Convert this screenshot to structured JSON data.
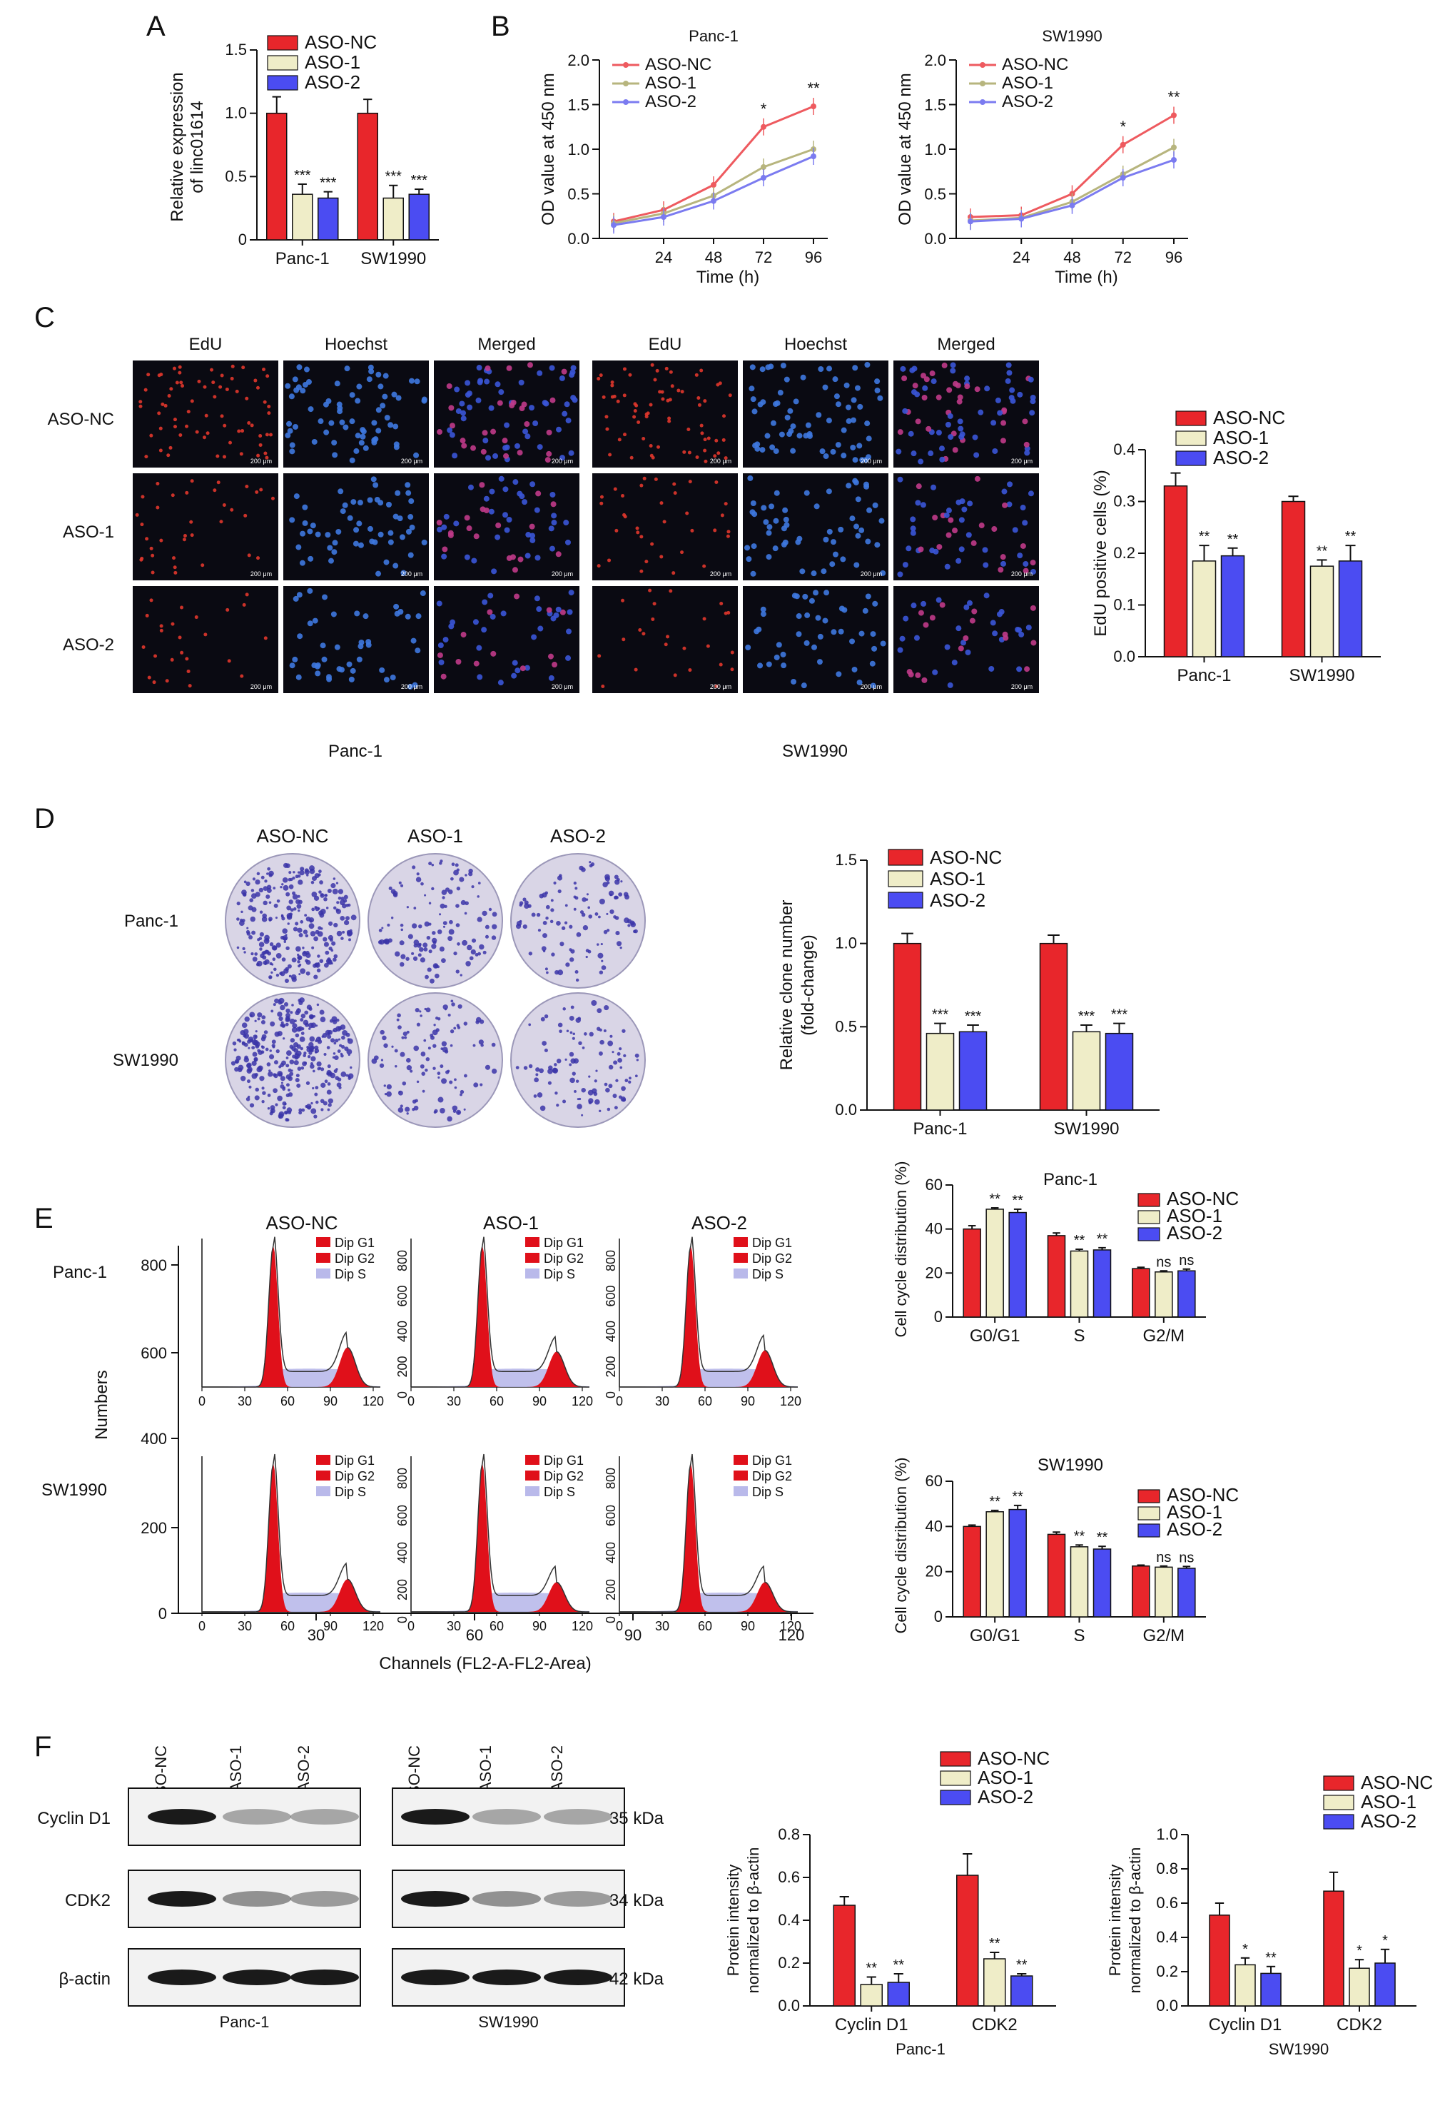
{
  "colors": {
    "nc": "#e8262b",
    "aso1": "#efedc8",
    "aso2": "#4b4cf2",
    "line_nc": "#ee5a5f",
    "line_aso1": "#b7b57e",
    "line_aso2": "#7b7bf0",
    "micro_bg": "#0a0a12"
  },
  "panels": {
    "A": {
      "letter": "A",
      "ylabel1": "Relative expression",
      "ylabel2": "of linc01614",
      "ticks": [
        "1.5",
        "1.0",
        "0.5",
        "0"
      ]
    },
    "B": {
      "letter": "B",
      "ylabel": "OD value at 450 nm",
      "xlabel": "Time (h)",
      "ticks_y": [
        "2.0",
        "1.5",
        "1.0",
        "0.5",
        "0.0"
      ],
      "ticks_x": [
        "24",
        "48",
        "72",
        "96"
      ]
    },
    "C": {
      "letter": "C",
      "col_headers": [
        "EdU",
        "Hoechst",
        "Merged",
        "EdU",
        "Hoechst",
        "Merged"
      ],
      "row_labels": [
        "ASO-NC",
        "ASO-1",
        "ASO-2"
      ],
      "scale_label": "200 μm",
      "group_labels": [
        "Panc-1",
        "SW1990"
      ],
      "ylabel": "EdU positive cells (%)",
      "ticks": [
        "0.4",
        "0.3",
        "0.2",
        "0.1",
        "0.0"
      ]
    },
    "D": {
      "letter": "D",
      "col_headers": [
        "ASO-NC",
        "ASO-1",
        "ASO-2"
      ],
      "row_labels": [
        "Panc-1",
        "SW1990"
      ],
      "ylabel1": "Relative clone number",
      "ylabel2": "(fold-change)",
      "ticks": [
        "1.5",
        "1.0",
        "0.5",
        "0.0"
      ]
    },
    "E": {
      "letter": "E",
      "col_headers": [
        "ASO-NC",
        "ASO-1",
        "ASO-2"
      ],
      "row_labels": [
        "Panc-1",
        "SW1990"
      ],
      "ylabel": "Numbers",
      "xlabel": "Channels (FL2-A-FL2-Area)",
      "legend": [
        "Dip G1",
        "Dip G2",
        "Dip S"
      ],
      "outer_yticks_top": [
        "800",
        "600"
      ],
      "outer_yticks_bot": [
        "400",
        "200",
        "0"
      ],
      "outer_xticks": [
        "30",
        "60",
        "90",
        "120"
      ],
      "inner_xticks": [
        "0",
        "30",
        "60",
        "90",
        "120"
      ],
      "inner_yticks": [
        "0",
        "200",
        "400",
        "600",
        "800"
      ],
      "bar_ylabel": "Cell cycle distribution (%)",
      "bar_ticks": [
        "60",
        "40",
        "20",
        "0"
      ]
    },
    "F": {
      "letter": "F",
      "lane_labels": [
        "ASO-NC",
        "ASO-1",
        "ASO-2"
      ],
      "protein_labels": [
        "Cyclin D1",
        "CDK2",
        "β-actin"
      ],
      "kda": [
        "35 kDa",
        "34 kDa",
        "42 kDa"
      ],
      "group_labels": [
        "Panc-1",
        "SW1990"
      ],
      "ylabel1": "Protein intensity",
      "ylabel2": "normalized to β-actin",
      "ticks_panc": [
        "0.8",
        "0.6",
        "0.4",
        "0.2",
        "0.0"
      ],
      "ticks_sw": [
        "1.0",
        "0.8",
        "0.6",
        "0.4",
        "0.2",
        "0.0"
      ]
    }
  },
  "chart_data": [
    {
      "panel": "A",
      "type": "bar",
      "categories": [
        "Panc-1",
        "SW1990"
      ],
      "ylim": [
        0,
        1.5
      ],
      "series": [
        {
          "name": "ASO-NC",
          "values": [
            1.0,
            1.0
          ],
          "err": [
            0.13,
            0.11
          ],
          "sig": [
            "",
            ""
          ]
        },
        {
          "name": "ASO-1",
          "values": [
            0.36,
            0.33
          ],
          "err": [
            0.08,
            0.1
          ],
          "sig": [
            "***",
            "***"
          ]
        },
        {
          "name": "ASO-2",
          "values": [
            0.33,
            0.36
          ],
          "err": [
            0.05,
            0.04
          ],
          "sig": [
            "***",
            "***"
          ]
        }
      ]
    },
    {
      "panel": "B",
      "type": "line",
      "title": "Panc-1",
      "x": [
        0,
        24,
        48,
        72,
        96
      ],
      "ylim": [
        0,
        2
      ],
      "series": [
        {
          "name": "ASO-NC",
          "values": [
            0.19,
            0.32,
            0.6,
            1.25,
            1.48
          ]
        },
        {
          "name": "ASO-1",
          "values": [
            0.17,
            0.28,
            0.48,
            0.8,
            1.0
          ]
        },
        {
          "name": "ASO-2",
          "values": [
            0.15,
            0.24,
            0.42,
            0.68,
            0.92
          ]
        }
      ],
      "sig": [
        "",
        "",
        "",
        "*",
        "**"
      ]
    },
    {
      "panel": "B",
      "type": "line",
      "title": "SW1990",
      "x": [
        0,
        24,
        48,
        72,
        96
      ],
      "ylim": [
        0,
        2
      ],
      "series": [
        {
          "name": "ASO-NC",
          "values": [
            0.24,
            0.26,
            0.5,
            1.05,
            1.38
          ]
        },
        {
          "name": "ASO-1",
          "values": [
            0.2,
            0.23,
            0.41,
            0.72,
            1.02
          ]
        },
        {
          "name": "ASO-2",
          "values": [
            0.19,
            0.22,
            0.37,
            0.68,
            0.88
          ]
        }
      ],
      "sig": [
        "",
        "",
        "",
        "*",
        "**"
      ]
    },
    {
      "panel": "C",
      "type": "bar",
      "categories": [
        "Panc-1",
        "SW1990"
      ],
      "ylim": [
        0,
        0.4
      ],
      "series": [
        {
          "name": "ASO-NC",
          "values": [
            0.33,
            0.3
          ],
          "err": [
            0.025,
            0.01
          ],
          "sig": [
            "",
            ""
          ]
        },
        {
          "name": "ASO-1",
          "values": [
            0.185,
            0.175
          ],
          "err": [
            0.03,
            0.012
          ],
          "sig": [
            "**",
            "**"
          ]
        },
        {
          "name": "ASO-2",
          "values": [
            0.195,
            0.185
          ],
          "err": [
            0.015,
            0.03
          ],
          "sig": [
            "**",
            "**"
          ]
        }
      ]
    },
    {
      "panel": "D",
      "type": "bar",
      "categories": [
        "Panc-1",
        "SW1990"
      ],
      "ylim": [
        0,
        1.5
      ],
      "series": [
        {
          "name": "ASO-NC",
          "values": [
            1.0,
            1.0
          ],
          "err": [
            0.06,
            0.05
          ],
          "sig": [
            "",
            ""
          ]
        },
        {
          "name": "ASO-1",
          "values": [
            0.46,
            0.47
          ],
          "err": [
            0.06,
            0.04
          ],
          "sig": [
            "***",
            "***"
          ]
        },
        {
          "name": "ASO-2",
          "values": [
            0.47,
            0.46
          ],
          "err": [
            0.04,
            0.06
          ],
          "sig": [
            "***",
            "***"
          ]
        }
      ]
    },
    {
      "panel": "E",
      "type": "bar",
      "title": "Panc-1",
      "categories": [
        "G0/G1",
        "S",
        "G2/M"
      ],
      "ylim": [
        0,
        60
      ],
      "series": [
        {
          "name": "ASO-NC",
          "values": [
            40,
            37,
            22
          ],
          "err": [
            1.5,
            1.2,
            0.6
          ],
          "sig": [
            "",
            "",
            ""
          ]
        },
        {
          "name": "ASO-1",
          "values": [
            49,
            30,
            20.5
          ],
          "err": [
            0.6,
            0.8,
            0.5
          ],
          "sig": [
            "**",
            "**",
            "ns"
          ]
        },
        {
          "name": "ASO-2",
          "values": [
            47.5,
            30.5,
            21
          ],
          "err": [
            1.5,
            1.0,
            0.8
          ],
          "sig": [
            "**",
            "**",
            "ns"
          ]
        }
      ]
    },
    {
      "panel": "E",
      "type": "bar",
      "title": "SW1990",
      "categories": [
        "G0/G1",
        "S",
        "G2/M"
      ],
      "ylim": [
        0,
        60
      ],
      "series": [
        {
          "name": "ASO-NC",
          "values": [
            40,
            36.5,
            22.5
          ],
          "err": [
            0.6,
            1.0,
            0.4
          ],
          "sig": [
            "",
            "",
            ""
          ]
        },
        {
          "name": "ASO-1",
          "values": [
            46.5,
            31,
            22
          ],
          "err": [
            0.6,
            0.8,
            0.5
          ],
          "sig": [
            "**",
            "**",
            "ns"
          ]
        },
        {
          "name": "ASO-2",
          "values": [
            47.5,
            30,
            21.5
          ],
          "err": [
            1.8,
            1.2,
            0.8
          ],
          "sig": [
            "**",
            "**",
            "ns"
          ]
        }
      ]
    },
    {
      "panel": "F",
      "type": "bar",
      "title": "Panc-1",
      "categories": [
        "Cyclin D1",
        "CDK2"
      ],
      "ylim": [
        0,
        0.8
      ],
      "series": [
        {
          "name": "ASO-NC",
          "values": [
            0.47,
            0.61
          ],
          "err": [
            0.04,
            0.1
          ],
          "sig": [
            "",
            ""
          ]
        },
        {
          "name": "ASO-1",
          "values": [
            0.1,
            0.22
          ],
          "err": [
            0.035,
            0.03
          ],
          "sig": [
            "**",
            "**"
          ]
        },
        {
          "name": "ASO-2",
          "values": [
            0.11,
            0.14
          ],
          "err": [
            0.04,
            0.01
          ],
          "sig": [
            "**",
            "**"
          ]
        }
      ]
    },
    {
      "panel": "F",
      "type": "bar",
      "title": "SW1990",
      "categories": [
        "Cyclin D1",
        "CDK2"
      ],
      "ylim": [
        0,
        1.0
      ],
      "series": [
        {
          "name": "ASO-NC",
          "values": [
            0.53,
            0.67
          ],
          "err": [
            0.07,
            0.11
          ],
          "sig": [
            "",
            ""
          ]
        },
        {
          "name": "ASO-1",
          "values": [
            0.24,
            0.22
          ],
          "err": [
            0.04,
            0.05
          ],
          "sig": [
            "*",
            "*"
          ]
        },
        {
          "name": "ASO-2",
          "values": [
            0.19,
            0.25
          ],
          "err": [
            0.04,
            0.08
          ],
          "sig": [
            "**",
            "*"
          ]
        }
      ]
    }
  ]
}
